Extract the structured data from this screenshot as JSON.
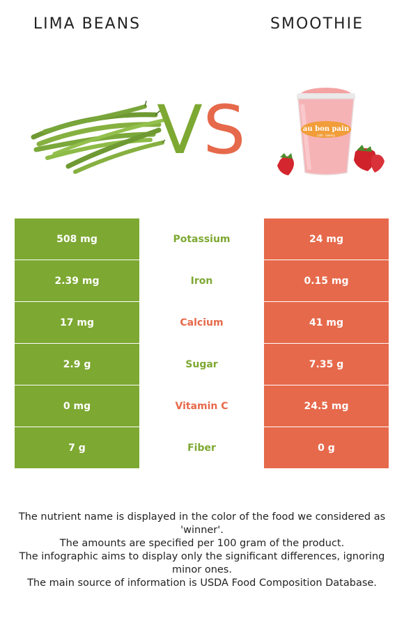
{
  "header": {
    "left_food": "LIMA BEANS",
    "right_food": "SMOOTHIE",
    "vs_left": "V",
    "vs_right": "S"
  },
  "colors": {
    "left_accent": "#7da832",
    "right_accent": "#e6694b"
  },
  "smoothie_cup": {
    "brand_line1": "au bon pain",
    "brand_line2": "café · bakery"
  },
  "nutrients": [
    {
      "name": "Potassium",
      "left": "508 mg",
      "right": "24 mg",
      "winner": "left"
    },
    {
      "name": "Iron",
      "left": "2.39 mg",
      "right": "0.15 mg",
      "winner": "left"
    },
    {
      "name": "Calcium",
      "left": "17 mg",
      "right": "41 mg",
      "winner": "right"
    },
    {
      "name": "Sugar",
      "left": "2.9 g",
      "right": "7.35 g",
      "winner": "left"
    },
    {
      "name": "Vitamin C",
      "left": "0 mg",
      "right": "24.5 mg",
      "winner": "right"
    },
    {
      "name": "Fiber",
      "left": "7 g",
      "right": "0 g",
      "winner": "left"
    }
  ],
  "footnotes": [
    "The nutrient name is displayed in the color of the food we considered as 'winner'.",
    "The amounts are specified per 100 gram of the product.",
    "The infographic aims to display only the significant differences, ignoring minor ones.",
    "The main source of information is USDA Food Composition Database."
  ]
}
